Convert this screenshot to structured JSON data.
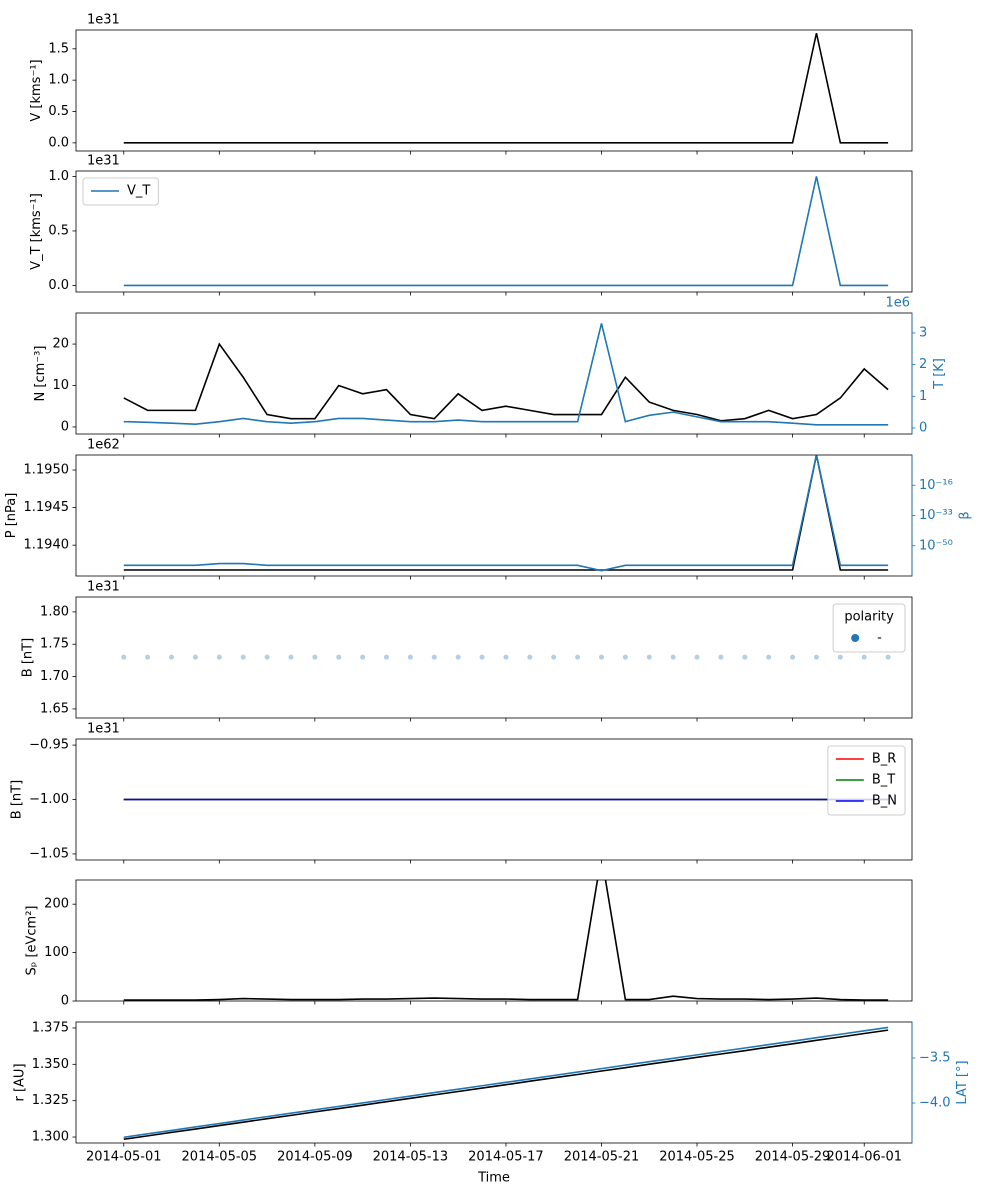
{
  "chart_data": [
    {
      "type": "line",
      "ylabel": "V [kms⁻¹]",
      "offset_label": "1e31",
      "x": [
        "2014-05-01",
        "2014-05-02",
        "2014-05-03",
        "2014-05-04",
        "2014-05-05",
        "2014-05-06",
        "2014-05-07",
        "2014-05-08",
        "2014-05-09",
        "2014-05-10",
        "2014-05-11",
        "2014-05-12",
        "2014-05-13",
        "2014-05-14",
        "2014-05-15",
        "2014-05-16",
        "2014-05-17",
        "2014-05-18",
        "2014-05-19",
        "2014-05-20",
        "2014-05-21",
        "2014-05-22",
        "2014-05-23",
        "2014-05-24",
        "2014-05-25",
        "2014-05-26",
        "2014-05-27",
        "2014-05-28",
        "2014-05-29",
        "2014-05-30",
        "2014-05-31",
        "2014-06-01",
        "2014-06-02"
      ],
      "series": [
        {
          "color": "#000000",
          "values": [
            0,
            0,
            0,
            0,
            0,
            0,
            0,
            0,
            0,
            0,
            0,
            0,
            0,
            0,
            0,
            0,
            0,
            0,
            0,
            0,
            0,
            0,
            0,
            0,
            0,
            0,
            0,
            0,
            0,
            1.75,
            0,
            0,
            0
          ]
        }
      ],
      "ylim": [
        -0.13,
        1.8
      ],
      "yticks": [
        {
          "value": 0,
          "label": "0.0"
        },
        {
          "value": 0.5,
          "label": "0.5"
        },
        {
          "value": 1,
          "label": "1.0"
        },
        {
          "value": 1.5,
          "label": "1.5"
        }
      ]
    },
    {
      "type": "line",
      "ylabel": "V_T [kms⁻¹]",
      "offset_label": "1e31",
      "legend": "upper left",
      "x": [
        "2014-05-01",
        "2014-05-02",
        "2014-05-03",
        "2014-05-04",
        "2014-05-05",
        "2014-05-06",
        "2014-05-07",
        "2014-05-08",
        "2014-05-09",
        "2014-05-10",
        "2014-05-11",
        "2014-05-12",
        "2014-05-13",
        "2014-05-14",
        "2014-05-15",
        "2014-05-16",
        "2014-05-17",
        "2014-05-18",
        "2014-05-19",
        "2014-05-20",
        "2014-05-21",
        "2014-05-22",
        "2014-05-23",
        "2014-05-24",
        "2014-05-25",
        "2014-05-26",
        "2014-05-27",
        "2014-05-28",
        "2014-05-29",
        "2014-05-30",
        "2014-05-31",
        "2014-06-01",
        "2014-06-02"
      ],
      "series": [
        {
          "name": "V_T",
          "color": "#1f77b4",
          "values": [
            0,
            0,
            0,
            0,
            0,
            0,
            0,
            0,
            0,
            0,
            0,
            0,
            0,
            0,
            0,
            0,
            0,
            0,
            0,
            0,
            0,
            0,
            0,
            0,
            0,
            0,
            0,
            0,
            0,
            1,
            0,
            0,
            0
          ]
        }
      ],
      "ylim": [
        -0.06,
        1.05
      ],
      "yticks": [
        {
          "value": 0,
          "label": "0.0"
        },
        {
          "value": 0.5,
          "label": "0.5"
        },
        {
          "value": 1,
          "label": "1.0"
        }
      ]
    },
    {
      "type": "line",
      "ylabel": "N [cm⁻³]",
      "y2label": "T [K]",
      "y2_offset_label": "1e6",
      "x": [
        "2014-05-01",
        "2014-05-02",
        "2014-05-03",
        "2014-05-04",
        "2014-05-05",
        "2014-05-06",
        "2014-05-07",
        "2014-05-08",
        "2014-05-09",
        "2014-05-10",
        "2014-05-11",
        "2014-05-12",
        "2014-05-13",
        "2014-05-14",
        "2014-05-15",
        "2014-05-16",
        "2014-05-17",
        "2014-05-18",
        "2014-05-19",
        "2014-05-20",
        "2014-05-21",
        "2014-05-22",
        "2014-05-23",
        "2014-05-24",
        "2014-05-25",
        "2014-05-26",
        "2014-05-27",
        "2014-05-28",
        "2014-05-29",
        "2014-05-30",
        "2014-05-31",
        "2014-06-01",
        "2014-06-02"
      ],
      "series": [
        {
          "color": "#000000",
          "values": [
            7,
            4,
            4,
            4,
            20,
            12,
            3,
            2,
            2,
            10,
            8,
            9,
            3,
            2,
            8,
            4,
            5,
            4,
            3,
            3,
            3,
            12,
            6,
            4,
            3,
            1.5,
            2,
            4,
            2,
            3,
            7,
            14,
            9
          ]
        },
        {
          "color": "#1f77b4",
          "axis": "y2",
          "values": [
            0.2,
            0.18,
            0.15,
            0.12,
            0.2,
            0.3,
            0.2,
            0.15,
            0.2,
            0.3,
            0.3,
            0.25,
            0.2,
            0.2,
            0.25,
            0.2,
            0.2,
            0.2,
            0.2,
            0.2,
            3.3,
            0.2,
            0.4,
            0.5,
            0.35,
            0.2,
            0.2,
            0.2,
            0.15,
            0.1,
            0.1,
            0.1,
            0.1
          ]
        }
      ],
      "ylim": [
        -1.7,
        27.5
      ],
      "yticks": [
        0,
        10,
        20
      ],
      "y2lim": [
        -0.19,
        3.63
      ],
      "y2ticks": [
        0,
        1,
        2,
        3
      ]
    },
    {
      "type": "line",
      "ylabel": "P [nPa]",
      "offset_label": "1e62",
      "y2label": "β",
      "y2scale": "log",
      "x": [
        "2014-05-01",
        "2014-05-02",
        "2014-05-03",
        "2014-05-04",
        "2014-05-05",
        "2014-05-06",
        "2014-05-07",
        "2014-05-08",
        "2014-05-09",
        "2014-05-10",
        "2014-05-11",
        "2014-05-12",
        "2014-05-13",
        "2014-05-14",
        "2014-05-15",
        "2014-05-16",
        "2014-05-17",
        "2014-05-18",
        "2014-05-19",
        "2014-05-20",
        "2014-05-21",
        "2014-05-22",
        "2014-05-23",
        "2014-05-24",
        "2014-05-25",
        "2014-05-26",
        "2014-05-27",
        "2014-05-28",
        "2014-05-29",
        "2014-05-30",
        "2014-05-31",
        "2014-06-01",
        "2014-06-02"
      ],
      "series": [
        {
          "color": "#000000",
          "values": [
            1.19367,
            1.19367,
            1.19367,
            1.19367,
            1.19367,
            1.19367,
            1.19367,
            1.19367,
            1.19367,
            1.19367,
            1.19367,
            1.19367,
            1.19367,
            1.19367,
            1.19367,
            1.19367,
            1.19367,
            1.19367,
            1.19367,
            1.19367,
            1.19367,
            1.19367,
            1.19367,
            1.19367,
            1.19367,
            1.19367,
            1.19367,
            1.19367,
            1.19367,
            1.1952,
            1.19367,
            1.19367,
            1.19367
          ]
        },
        {
          "color": "#1f77b4",
          "axis": "y2",
          "values": [
            1e-61,
            1e-61,
            1e-61,
            1e-61,
            1e-60,
            1e-60,
            1e-61,
            1e-61,
            1e-61,
            1e-61,
            1e-61,
            1e-61,
            1e-61,
            1e-61,
            1e-61,
            1e-61,
            1e-61,
            1e-61,
            1e-61,
            1e-61,
            1e-64,
            1e-61,
            1e-61,
            1e-61,
            1e-61,
            1e-61,
            1e-61,
            1e-61,
            1e-61,
            10,
            1e-61,
            1e-61,
            1e-61
          ]
        }
      ],
      "ylim": [
        1.19359,
        1.1952
      ],
      "yticks": [
        {
          "value": 1.194,
          "label": "1.1940"
        },
        {
          "value": 1.1945,
          "label": "1.1945"
        },
        {
          "value": 1.195,
          "label": "1.1950"
        }
      ],
      "y2lim": [
        1e-67,
        10
      ],
      "y2ticks": [
        {
          "value": 1e-50,
          "label": "10⁻⁵⁰"
        },
        {
          "value": 1e-33,
          "label": "10⁻³³"
        },
        {
          "value": 1e-16,
          "label": "10⁻¹⁶"
        }
      ]
    },
    {
      "type": "scatter",
      "ylabel": "B [nT]",
      "offset_label": "1e31",
      "legend": "upper right",
      "legend_title": "polarity",
      "alpha": 0.35,
      "x": [
        "2014-05-01",
        "2014-05-02",
        "2014-05-03",
        "2014-05-04",
        "2014-05-05",
        "2014-05-06",
        "2014-05-07",
        "2014-05-08",
        "2014-05-09",
        "2014-05-10",
        "2014-05-11",
        "2014-05-12",
        "2014-05-13",
        "2014-05-14",
        "2014-05-15",
        "2014-05-16",
        "2014-05-17",
        "2014-05-18",
        "2014-05-19",
        "2014-05-20",
        "2014-05-21",
        "2014-05-22",
        "2014-05-23",
        "2014-05-24",
        "2014-05-25",
        "2014-05-26",
        "2014-05-27",
        "2014-05-28",
        "2014-05-29",
        "2014-05-30",
        "2014-05-31",
        "2014-06-01",
        "2014-06-02"
      ],
      "series": [
        {
          "name": "-",
          "color": "#1f77b4",
          "values": [
            1.73,
            1.73,
            1.73,
            1.73,
            1.73,
            1.73,
            1.73,
            1.73,
            1.73,
            1.73,
            1.73,
            1.73,
            1.73,
            1.73,
            1.73,
            1.73,
            1.73,
            1.73,
            1.73,
            1.73,
            1.73,
            1.73,
            1.73,
            1.73,
            1.73,
            1.73,
            1.73,
            1.73,
            1.73,
            1.73,
            1.73,
            1.73,
            1.73
          ]
        }
      ],
      "ylim": [
        1.636,
        1.823
      ],
      "yticks": [
        1.65,
        {
          "value": 1.7,
          "label": "1.70"
        },
        1.75,
        {
          "value": 1.8,
          "label": "1.80"
        }
      ]
    },
    {
      "type": "line",
      "ylabel": "B [nT]",
      "offset_label": "1e31",
      "legend": "upper right",
      "x": [
        "2014-05-01",
        "2014-05-02",
        "2014-05-03",
        "2014-05-04",
        "2014-05-05",
        "2014-05-06",
        "2014-05-07",
        "2014-05-08",
        "2014-05-09",
        "2014-05-10",
        "2014-05-11",
        "2014-05-12",
        "2014-05-13",
        "2014-05-14",
        "2014-05-15",
        "2014-05-16",
        "2014-05-17",
        "2014-05-18",
        "2014-05-19",
        "2014-05-20",
        "2014-05-21",
        "2014-05-22",
        "2014-05-23",
        "2014-05-24",
        "2014-05-25",
        "2014-05-26",
        "2014-05-27",
        "2014-05-28",
        "2014-05-29",
        "2014-05-30",
        "2014-05-31",
        "2014-06-01",
        "2014-06-02"
      ],
      "series": [
        {
          "name": "B_R",
          "color": "red",
          "values": [
            -1,
            -1,
            -1,
            -1,
            -1,
            -1,
            -1,
            -1,
            -1,
            -1,
            -1,
            -1,
            -1,
            -1,
            -1,
            -1,
            -1,
            -1,
            -1,
            -1,
            -1,
            -1,
            -1,
            -1,
            -1,
            -1,
            -1,
            -1,
            -1,
            -1,
            -1,
            -1,
            -1
          ]
        },
        {
          "name": "B_T",
          "color": "green",
          "values": [
            -1,
            -1,
            -1,
            -1,
            -1,
            -1,
            -1,
            -1,
            -1,
            -1,
            -1,
            -1,
            -1,
            -1,
            -1,
            -1,
            -1,
            -1,
            -1,
            -1,
            -1,
            -1,
            -1,
            -1,
            -1,
            -1,
            -1,
            -1,
            -1,
            -1,
            -1,
            -1,
            -1
          ]
        },
        {
          "name": "B_N",
          "color": "blue",
          "values": [
            -1,
            -1,
            -1,
            -1,
            -1,
            -1,
            -1,
            -1,
            -1,
            -1,
            -1,
            -1,
            -1,
            -1,
            -1,
            -1,
            -1,
            -1,
            -1,
            -1,
            -1,
            -1,
            -1,
            -1,
            -1,
            -1,
            -1,
            -1,
            -1,
            -1,
            -1,
            -1,
            -1
          ]
        }
      ],
      "ylim": [
        -1.0556,
        -0.9444
      ],
      "yticks": [
        {
          "value": -1.05,
          "label": "−1.05"
        },
        {
          "value": -1,
          "label": "−1.00"
        },
        {
          "value": -0.95,
          "label": "−0.95"
        }
      ]
    },
    {
      "type": "line",
      "ylabel": "Sₚ [eVcm²]",
      "x": [
        "2014-05-01",
        "2014-05-02",
        "2014-05-03",
        "2014-05-04",
        "2014-05-05",
        "2014-05-06",
        "2014-05-07",
        "2014-05-08",
        "2014-05-09",
        "2014-05-10",
        "2014-05-11",
        "2014-05-12",
        "2014-05-13",
        "2014-05-14",
        "2014-05-15",
        "2014-05-16",
        "2014-05-17",
        "2014-05-18",
        "2014-05-19",
        "2014-05-20",
        "2014-05-21",
        "2014-05-22",
        "2014-05-23",
        "2014-05-24",
        "2014-05-25",
        "2014-05-26",
        "2014-05-27",
        "2014-05-28",
        "2014-05-29",
        "2014-05-30",
        "2014-05-31",
        "2014-06-01",
        "2014-06-02"
      ],
      "series": [
        {
          "color": "#000000",
          "values": [
            2,
            2,
            2,
            2,
            3,
            5,
            4,
            3,
            3,
            3,
            4,
            4,
            5,
            6,
            5,
            4,
            4,
            3,
            3,
            3,
            300,
            3,
            3,
            10,
            5,
            4,
            4,
            3,
            4,
            6,
            3,
            2,
            2
          ]
        }
      ],
      "ylim": [
        0,
        250
      ],
      "yticks": [
        0,
        100,
        200
      ]
    },
    {
      "type": "line",
      "ylabel": "r [AU]",
      "y2label": "LAT [°]",
      "xlabel": "Time",
      "x": [
        "2014-05-01",
        "2014-05-02",
        "2014-05-03",
        "2014-05-04",
        "2014-05-05",
        "2014-05-06",
        "2014-05-07",
        "2014-05-08",
        "2014-05-09",
        "2014-05-10",
        "2014-05-11",
        "2014-05-12",
        "2014-05-13",
        "2014-05-14",
        "2014-05-15",
        "2014-05-16",
        "2014-05-17",
        "2014-05-18",
        "2014-05-19",
        "2014-05-20",
        "2014-05-21",
        "2014-05-22",
        "2014-05-23",
        "2014-05-24",
        "2014-05-25",
        "2014-05-26",
        "2014-05-27",
        "2014-05-28",
        "2014-05-29",
        "2014-05-30",
        "2014-05-31",
        "2014-06-01",
        "2014-06-02"
      ],
      "series": [
        {
          "color": "#000000",
          "values": [
            1.2985,
            1.3008,
            1.3032,
            1.3055,
            1.3079,
            1.3102,
            1.3126,
            1.3149,
            1.3173,
            1.3196,
            1.3219,
            1.3243,
            1.3266,
            1.329,
            1.3313,
            1.3337,
            1.336,
            1.3384,
            1.3407,
            1.343,
            1.3454,
            1.3477,
            1.3501,
            1.3524,
            1.3548,
            1.3571,
            1.3594,
            1.3618,
            1.3641,
            1.3665,
            1.3688,
            1.3712,
            1.3735
          ]
        },
        {
          "color": "#1f77b4",
          "axis": "y2",
          "values": [
            -4.38,
            -4.342,
            -4.304,
            -4.266,
            -4.228,
            -4.189,
            -4.151,
            -4.113,
            -4.075,
            -4.037,
            -3.999,
            -3.961,
            -3.923,
            -3.884,
            -3.846,
            -3.808,
            -3.77,
            -3.732,
            -3.694,
            -3.656,
            -3.618,
            -3.579,
            -3.541,
            -3.503,
            -3.465,
            -3.427,
            -3.389,
            -3.351,
            -3.313,
            -3.274,
            -3.236,
            -3.198,
            -3.16
          ]
        }
      ],
      "ylim": [
        1.2959,
        1.3791
      ],
      "yticks": [
        {
          "value": 1.3,
          "label": "1.300"
        },
        1.325,
        {
          "value": 1.35,
          "label": "1.350"
        },
        1.375
      ],
      "y2lim": [
        -4.444,
        -3.1
      ],
      "y2ticks": [
        {
          "value": -4,
          "label": "−4.0"
        },
        {
          "value": -3.5,
          "label": "−3.5"
        }
      ],
      "xlim": [
        "2014-04-29",
        "2014-06-03"
      ],
      "xticks": [
        "2014-05-01",
        "2014-05-05",
        "2014-05-09",
        "2014-05-13",
        "2014-05-17",
        "2014-05-21",
        "2014-05-25",
        "2014-05-29",
        "2014-06-01"
      ]
    }
  ]
}
